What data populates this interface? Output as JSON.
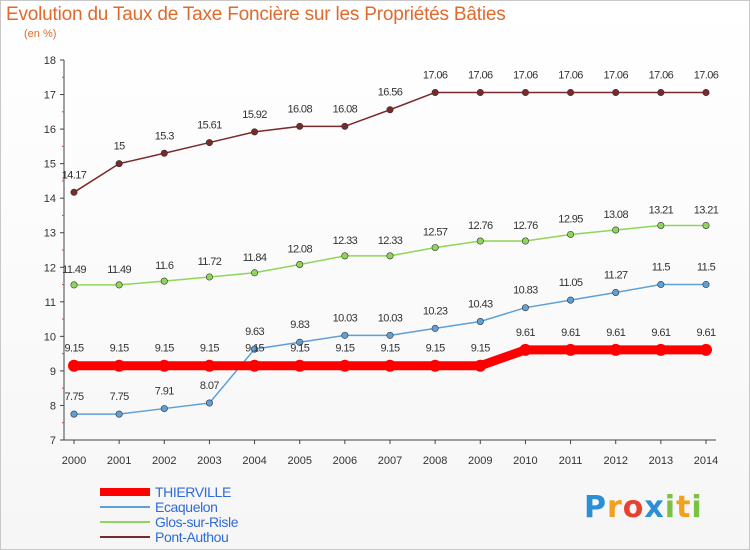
{
  "title": "Evolution du Taux de Taxe Foncière sur les Propriétés Bâties",
  "unit_label": "(en %)",
  "logo": {
    "text": "Proxiti",
    "letters": [
      {
        "ch": "P",
        "color": "#2b8fd6"
      },
      {
        "ch": "r",
        "color": "#f0a21e"
      },
      {
        "ch": "o",
        "color": "#e8412f"
      },
      {
        "ch": "x",
        "color": "#2b8fd6"
      },
      {
        "ch": "i",
        "color": "#7cc242"
      },
      {
        "ch": "t",
        "color": "#f0a21e"
      },
      {
        "ch": "i",
        "color": "#7cc242"
      }
    ]
  },
  "chart_data": {
    "type": "line",
    "x": [
      "2000",
      "2001",
      "2002",
      "2003",
      "2004",
      "2005",
      "2006",
      "2007",
      "2008",
      "2009",
      "2010",
      "2011",
      "2012",
      "2013",
      "2014"
    ],
    "ylim": [
      7,
      18
    ],
    "yticks": [
      7,
      8,
      9,
      10,
      11,
      12,
      13,
      14,
      15,
      16,
      17,
      18
    ],
    "grid": false,
    "legend_position": "bottom-left",
    "series": [
      {
        "name": "THIERVILLE",
        "color": "#ff0000",
        "values": [
          9.15,
          9.15,
          9.15,
          9.15,
          9.15,
          9.15,
          9.15,
          9.15,
          9.15,
          9.15,
          9.61,
          9.61,
          9.61,
          9.61,
          9.61
        ],
        "labels": [
          "9.15",
          "9.15",
          "9.15",
          "9.15",
          "9.15",
          "9.15",
          "9.15",
          "9.15",
          "9.15",
          "9.15",
          "9.61",
          "9.61",
          "9.61",
          "9.61",
          "9.61"
        ]
      },
      {
        "name": "Ecaquelon",
        "color": "#5fa0d6",
        "values": [
          7.75,
          7.75,
          7.91,
          8.07,
          9.63,
          9.83,
          10.03,
          10.03,
          10.23,
          10.43,
          10.83,
          11.05,
          11.27,
          11.5,
          11.5
        ],
        "labels": [
          "7.75",
          "7.75",
          "7.91",
          "8.07",
          "9.63",
          "9.83",
          "10.03",
          "10.03",
          "10.23",
          "10.43",
          "10.83",
          "11.05",
          "11.27",
          "11.5",
          "11.5"
        ]
      },
      {
        "name": "Glos-sur-Risle",
        "color": "#8ed65a",
        "values": [
          11.49,
          11.49,
          11.6,
          11.72,
          11.84,
          12.08,
          12.33,
          12.33,
          12.57,
          12.76,
          12.76,
          12.95,
          13.08,
          13.21,
          13.21
        ],
        "labels": [
          "11.49",
          "11.49",
          "11.6",
          "11.72",
          "11.84",
          "12.08",
          "12.33",
          "12.33",
          "12.57",
          "12.76",
          "12.76",
          "12.95",
          "13.08",
          "13.21",
          "13.21"
        ]
      },
      {
        "name": "Pont-Authou",
        "color": "#7a2a2a",
        "values": [
          14.17,
          15,
          15.3,
          15.61,
          15.92,
          16.08,
          16.08,
          16.56,
          17.06,
          17.06,
          17.06,
          17.06,
          17.06,
          17.06,
          17.06
        ],
        "labels": [
          "14.17",
          "15",
          "15.3",
          "15.61",
          "15.92",
          "16.08",
          "16.08",
          "16.56",
          "17.06",
          "17.06",
          "17.06",
          "17.06",
          "17.06",
          "17.06",
          "17.06"
        ]
      }
    ]
  }
}
